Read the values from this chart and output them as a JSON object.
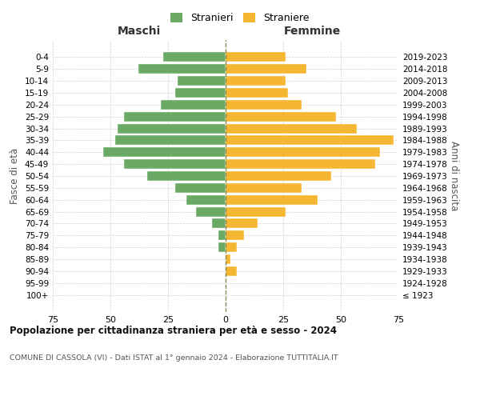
{
  "age_groups": [
    "100+",
    "95-99",
    "90-94",
    "85-89",
    "80-84",
    "75-79",
    "70-74",
    "65-69",
    "60-64",
    "55-59",
    "50-54",
    "45-49",
    "40-44",
    "35-39",
    "30-34",
    "25-29",
    "20-24",
    "15-19",
    "10-14",
    "5-9",
    "0-4"
  ],
  "birth_years": [
    "≤ 1923",
    "1924-1928",
    "1929-1933",
    "1934-1938",
    "1939-1943",
    "1944-1948",
    "1949-1953",
    "1954-1958",
    "1959-1963",
    "1964-1968",
    "1969-1973",
    "1974-1978",
    "1979-1983",
    "1984-1988",
    "1989-1993",
    "1994-1998",
    "1999-2003",
    "2004-2008",
    "2009-2013",
    "2014-2018",
    "2019-2023"
  ],
  "males": [
    0,
    0,
    0,
    0,
    3,
    3,
    6,
    13,
    17,
    22,
    34,
    44,
    53,
    48,
    47,
    44,
    28,
    22,
    21,
    38,
    27
  ],
  "females": [
    0,
    0,
    5,
    2,
    5,
    8,
    14,
    26,
    40,
    33,
    46,
    65,
    67,
    73,
    57,
    48,
    33,
    27,
    26,
    35,
    26
  ],
  "male_color": "#6aaa64",
  "female_color": "#f5b731",
  "male_label": "Stranieri",
  "female_label": "Straniere",
  "title": "Popolazione per cittadinanza straniera per età e sesso - 2024",
  "subtitle": "COMUNE DI CASSOLA (VI) - Dati ISTAT al 1° gennaio 2024 - Elaborazione TUTTITALIA.IT",
  "xlabel_left": "Maschi",
  "xlabel_right": "Femmine",
  "ylabel_left": "Fasce di età",
  "ylabel_right": "Anni di nascita",
  "xlim": 75,
  "background_color": "#ffffff",
  "grid_color": "#cccccc"
}
